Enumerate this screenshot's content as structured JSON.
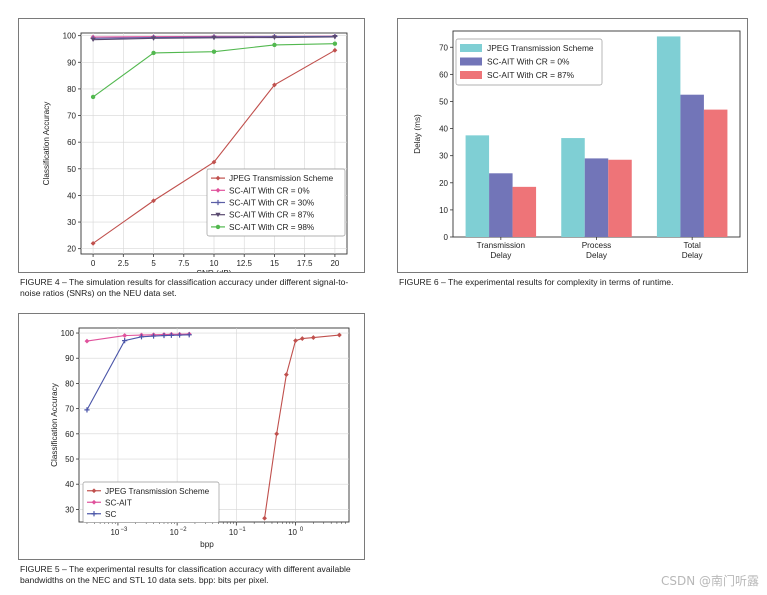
{
  "figures": [
    {
      "caption": "FIGURE 4 – The simulation results for classification accuracy under different signal-to-noise ratios (SNRs) on the NEU data set."
    },
    {
      "caption": "FIGURE 6 – The experimental results for complexity in terms of runtime."
    },
    {
      "caption": "FIGURE 5 – The experimental results for classification accuracy with different available bandwidths on the NEC and STL 10 data sets. bpp: bits per pixel."
    }
  ],
  "watermark": "CSDN @南门听露",
  "colors": {
    "jpeg": "#c0504d",
    "ait0": "#e0529c",
    "ait30": "#5b5ea6",
    "ait87": "#5a4a70",
    "ait98": "#52b84f",
    "sc": "#4a55a8",
    "bar_jpeg": "#7fcfd4",
    "bar_ait0": "#7275b8",
    "bar_ait87": "#ee7478"
  },
  "chart_data": [
    {
      "type": "line",
      "title": "",
      "xlabel": "SNR (dB)",
      "ylabel": "Classification Accuracy",
      "x": [
        0,
        5,
        10,
        15,
        20
      ],
      "xticks": [
        "0",
        "2.5",
        "5",
        "7.5",
        "10",
        "12.5",
        "15",
        "17.5",
        "20"
      ],
      "xlim": [
        -1,
        21
      ],
      "ylim": [
        18,
        101
      ],
      "yticks": [
        20,
        30,
        40,
        50,
        60,
        70,
        80,
        90,
        100
      ],
      "grid": true,
      "legend": "lower-right",
      "series": [
        {
          "name": "JPEG Transmission Scheme",
          "values": [
            22,
            38,
            52.5,
            81.5,
            94.5
          ],
          "color": "#c0504d",
          "marker": "diamond"
        },
        {
          "name": "SC-AIT With CR = 0%",
          "values": [
            99.5,
            99.6,
            99.7,
            99.7,
            99.8
          ],
          "color": "#e0529c",
          "marker": "diamond"
        },
        {
          "name": "SC-AIT With CR = 30%",
          "values": [
            99.0,
            99.3,
            99.5,
            99.6,
            99.7
          ],
          "color": "#5b5ea6",
          "marker": "plus"
        },
        {
          "name": "SC-AIT With CR = 87%",
          "values": [
            98.5,
            99.0,
            99.2,
            99.3,
            99.5
          ],
          "color": "#5a4a70",
          "marker": "triangle"
        },
        {
          "name": "SC-AIT With CR = 98%",
          "values": [
            77,
            93.5,
            94,
            96.5,
            97
          ],
          "color": "#52b84f",
          "marker": "circle"
        }
      ]
    },
    {
      "type": "bar",
      "title": "",
      "xlabel": "",
      "ylabel": "Delay (ms)",
      "categories": [
        "Transmission Delay",
        "Process Delay",
        "Total Delay"
      ],
      "ylim": [
        0,
        76
      ],
      "yticks": [
        0,
        10,
        20,
        30,
        40,
        50,
        60,
        70
      ],
      "grid": false,
      "legend": "top-left",
      "series": [
        {
          "name": "JPEG Transmission Scheme",
          "values": [
            37.5,
            36.5,
            74
          ],
          "color": "#7fcfd4"
        },
        {
          "name": "SC-AIT With CR = 0%",
          "values": [
            23.5,
            29,
            52.5
          ],
          "color": "#7275b8"
        },
        {
          "name": "SC-AIT With CR = 87%",
          "values": [
            18.5,
            28.5,
            47
          ],
          "color": "#ee7478"
        }
      ]
    },
    {
      "type": "line",
      "title": "",
      "xlabel": "bpp",
      "ylabel": "Classification Accuracy",
      "xscale": "log",
      "xlim": [
        0.00022,
        8
      ],
      "ylim": [
        25,
        102
      ],
      "yticks": [
        30,
        40,
        50,
        60,
        70,
        80,
        90,
        100
      ],
      "xticks": [
        0.001,
        0.01,
        0.1,
        1
      ],
      "xtick_labels": [
        "10",
        "10",
        "10",
        "10"
      ],
      "xtick_exponents": [
        "−3",
        "−2",
        "−1",
        "0"
      ],
      "grid": true,
      "legend": "lower-left",
      "series": [
        {
          "name": "JPEG Transmission Scheme",
          "x": [
            0.3,
            0.48,
            0.7,
            1.0,
            1.3,
            2.0,
            5.5
          ],
          "values": [
            26.5,
            60,
            83.5,
            97,
            97.8,
            98.2,
            99.2
          ],
          "color": "#c0504d",
          "marker": "diamond"
        },
        {
          "name": "SC-AIT",
          "x": [
            0.0003,
            0.0013,
            0.0025,
            0.004,
            0.006,
            0.008,
            0.011,
            0.016
          ],
          "values": [
            96.8,
            99.0,
            99.2,
            99.3,
            99.4,
            99.5,
            99.5,
            99.6
          ],
          "color": "#e0529c",
          "marker": "diamond"
        },
        {
          "name": "SC",
          "x": [
            0.0003,
            0.0013,
            0.0025,
            0.004,
            0.006,
            0.008,
            0.011,
            0.016
          ],
          "values": [
            69.5,
            97,
            98.5,
            98.8,
            99.0,
            99.1,
            99.2,
            99.3
          ],
          "color": "#4a55a8",
          "marker": "plus"
        }
      ]
    }
  ]
}
